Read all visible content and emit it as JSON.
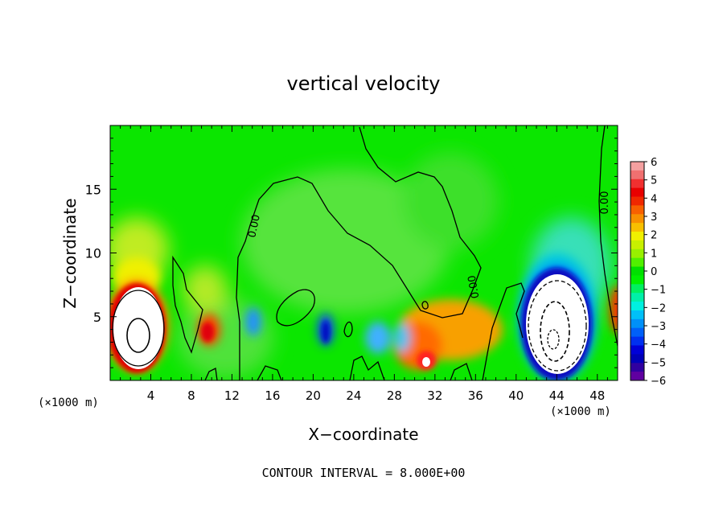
{
  "chart_data": {
    "type": "heatmap",
    "title": "vertical velocity",
    "xlabel": "X−coordinate",
    "ylabel": "Z−coordinate",
    "x_unit_left": "(×1000 m)",
    "x_unit_right": "(×1000 m)",
    "xlim": [
      0,
      50
    ],
    "ylim": [
      0,
      20
    ],
    "x_ticks": [
      4,
      8,
      12,
      16,
      20,
      24,
      28,
      32,
      36,
      40,
      44,
      48
    ],
    "y_ticks": [
      5,
      10,
      15
    ],
    "colorbar": {
      "range": [
        -6,
        6
      ],
      "labels": [
        "6",
        "5",
        "4",
        "3",
        "2",
        "1",
        "0",
        "−1",
        "−2",
        "−3",
        "−4",
        "−5",
        "−6"
      ]
    },
    "contour_label": "0.00",
    "contour_interval_text": "CONTOUR INTERVAL = 8.000E+00",
    "features": [
      {
        "name": "updraft core",
        "x": 2.5,
        "z": 3.5,
        "value": 12
      },
      {
        "name": "updraft",
        "x": 9.8,
        "z": 3.8,
        "value": 4.5
      },
      {
        "name": "updraft",
        "x": 31.2,
        "z": 2.2,
        "value": 5
      },
      {
        "name": "updraft",
        "x": 36.5,
        "z": 4.2,
        "value": 3
      },
      {
        "name": "downdraft",
        "x": 14,
        "z": 4.5,
        "value": -3
      },
      {
        "name": "downdraft",
        "x": 21.3,
        "z": 3.8,
        "value": -4
      },
      {
        "name": "downdraft",
        "x": 26,
        "z": 2.5,
        "value": -2.5
      },
      {
        "name": "downdraft core",
        "x": 44,
        "z": 4.5,
        "value": -14
      },
      {
        "name": "updraft edge",
        "x": 50,
        "z": 5.5,
        "value": 5
      }
    ]
  }
}
